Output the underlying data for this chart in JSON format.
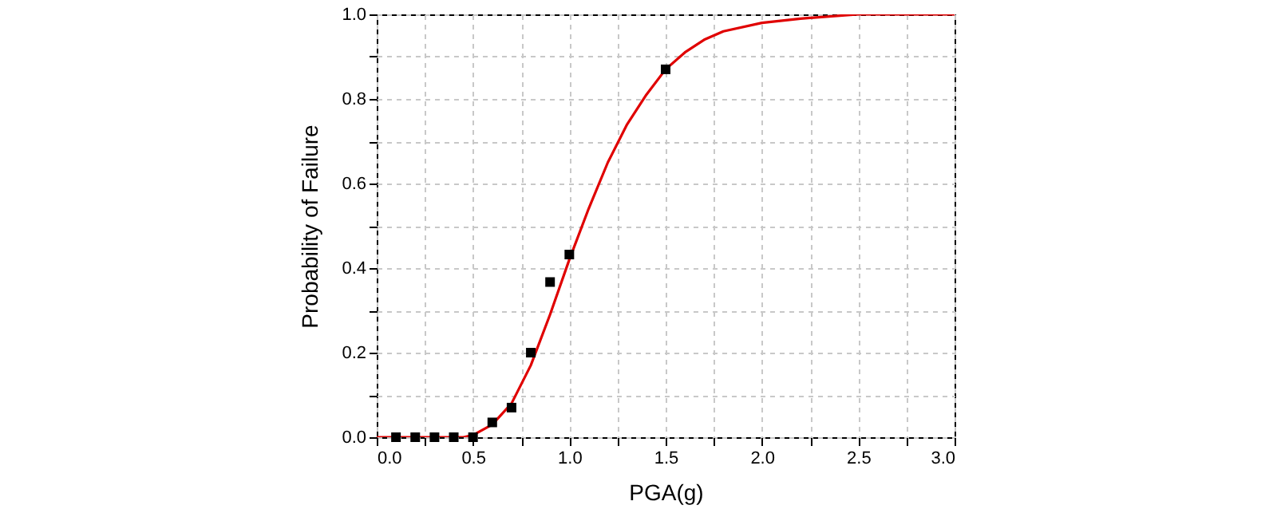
{
  "chart_data": {
    "type": "scatter",
    "xlabel": "PGA(g)",
    "ylabel": "Probability of Failure",
    "xlim": [
      0,
      3
    ],
    "ylim": [
      0,
      1
    ],
    "xticks": [
      {
        "value": 0,
        "label": "0.0"
      },
      {
        "value": 0.25,
        "label": null
      },
      {
        "value": 0.5,
        "label": "0.5"
      },
      {
        "value": 0.75,
        "label": null
      },
      {
        "value": 1,
        "label": "1.0"
      },
      {
        "value": 1.25,
        "label": null
      },
      {
        "value": 1.5,
        "label": "1.5"
      },
      {
        "value": 1.75,
        "label": null
      },
      {
        "value": 2,
        "label": "2.0"
      },
      {
        "value": 2.25,
        "label": null
      },
      {
        "value": 2.5,
        "label": "2.5"
      },
      {
        "value": 2.75,
        "label": null
      },
      {
        "value": 3,
        "label": "3.0"
      }
    ],
    "yticks": [
      {
        "value": 0,
        "label": "0.0"
      },
      {
        "value": 0.1,
        "label": null
      },
      {
        "value": 0.2,
        "label": "0.2"
      },
      {
        "value": 0.3,
        "label": null
      },
      {
        "value": 0.4,
        "label": "0.4"
      },
      {
        "value": 0.5,
        "label": null
      },
      {
        "value": 0.6,
        "label": "0.6"
      },
      {
        "value": 0.7,
        "label": null
      },
      {
        "value": 0.8,
        "label": "0.8"
      },
      {
        "value": 0.9,
        "label": null
      },
      {
        "value": 1,
        "label": "1.0"
      }
    ],
    "grid": true,
    "series": [
      {
        "type": "line",
        "color": "#e00000",
        "marker": "none",
        "line_style": "solid",
        "x": [
          0,
          0.45,
          0.5,
          0.6,
          0.7,
          0.8,
          0.9,
          1.0,
          1.1,
          1.2,
          1.3,
          1.4,
          1.5,
          1.6,
          1.7,
          1.8,
          2.0,
          2.2,
          2.5,
          3.0
        ],
        "values": [
          0,
          0,
          0.005,
          0.03,
          0.08,
          0.17,
          0.29,
          0.42,
          0.54,
          0.65,
          0.74,
          0.81,
          0.87,
          0.91,
          0.94,
          0.96,
          0.98,
          0.99,
          1.0,
          1.0
        ]
      },
      {
        "color": "#000000",
        "marker": "square",
        "x": [
          0.1,
          0.2,
          0.3,
          0.4,
          0.5,
          0.6,
          0.7,
          0.8,
          0.9,
          1.0,
          1.5
        ],
        "values": [
          0,
          0,
          0,
          0,
          0,
          0.035,
          0.07,
          0.2,
          0.367,
          0.432,
          0.87
        ]
      }
    ]
  }
}
